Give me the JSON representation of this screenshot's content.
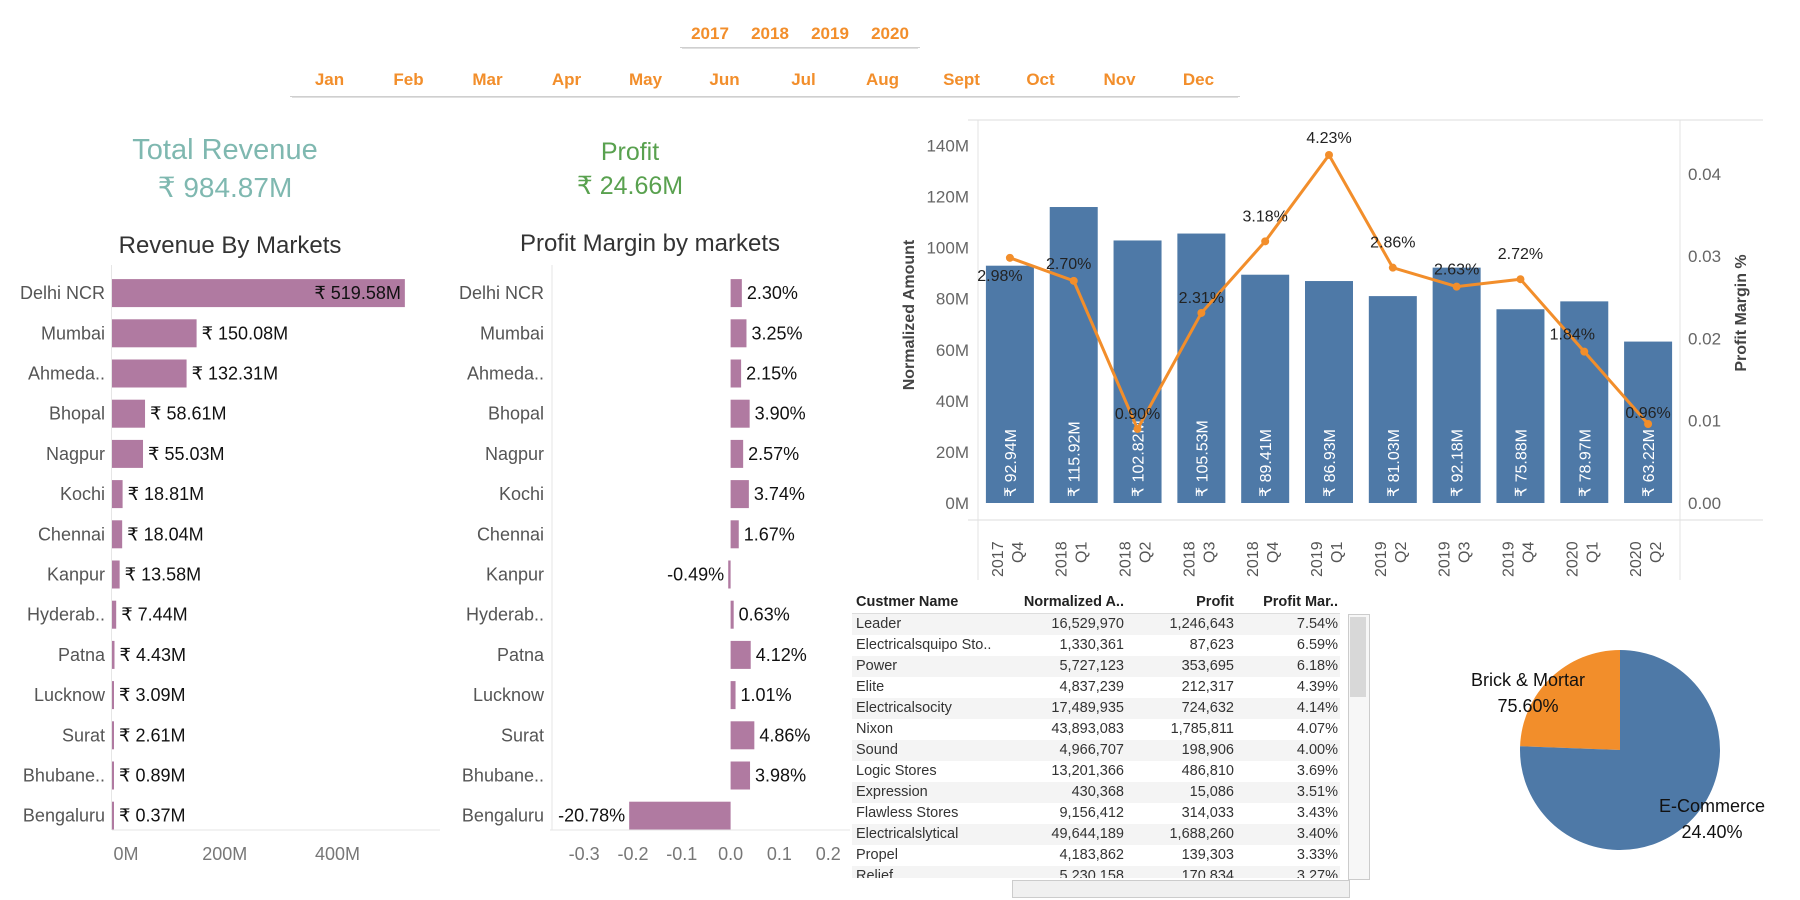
{
  "filters": {
    "years": [
      "2017",
      "2018",
      "2019",
      "2020"
    ],
    "months": [
      "Jan",
      "Feb",
      "Mar",
      "Apr",
      "May",
      "Jun",
      "Jul",
      "Aug",
      "Sept",
      "Oct",
      "Nov",
      "Dec"
    ]
  },
  "kpis": {
    "revenue": {
      "label": "Total Revenue",
      "value": "₹ 984.87M"
    },
    "profit": {
      "label": "Profit",
      "value": "₹ 24.66M"
    }
  },
  "colors": {
    "bar_purple": "#b07aa1",
    "bar_blue": "#4e79a7",
    "line_orange": "#f28e2b",
    "revenue_teal": "#7fb8b0",
    "profit_green": "#59a14f"
  },
  "chart_data": [
    {
      "type": "bar",
      "title": "Revenue By Markets",
      "orientation": "horizontal",
      "categories": [
        "Delhi NCR",
        "Mumbai",
        "Ahmeda..",
        "Bhopal",
        "Nagpur",
        "Kochi",
        "Chennai",
        "Kanpur",
        "Hyderab..",
        "Patna",
        "Lucknow",
        "Surat",
        "Bhubane..",
        "Bengaluru"
      ],
      "values": [
        519.58,
        150.08,
        132.31,
        58.61,
        55.03,
        18.81,
        18.04,
        13.58,
        7.44,
        4.43,
        3.09,
        2.61,
        0.89,
        0.37
      ],
      "data_labels": [
        "₹ 519.58M",
        "₹ 150.08M",
        "₹ 132.31M",
        "₹ 58.61M",
        "₹ 55.03M",
        "₹ 18.81M",
        "₹ 18.04M",
        "₹ 13.58M",
        "₹ 7.44M",
        "₹ 4.43M",
        "₹ 3.09M",
        "₹ 2.61M",
        "₹ 0.89M",
        "₹ 0.37M"
      ],
      "xticks": [
        "0M",
        "200M",
        "400M"
      ],
      "xtick_values": [
        0,
        200,
        400
      ],
      "xlim": [
        0,
        550
      ]
    },
    {
      "type": "bar",
      "title": "Profit Margin by markets",
      "orientation": "horizontal",
      "categories": [
        "Delhi NCR",
        "Mumbai",
        "Ahmeda..",
        "Bhopal",
        "Nagpur",
        "Kochi",
        "Chennai",
        "Kanpur",
        "Hyderab..",
        "Patna",
        "Lucknow",
        "Surat",
        "Bhubane..",
        "Bengaluru"
      ],
      "values": [
        2.3,
        3.25,
        2.15,
        3.9,
        2.57,
        3.74,
        1.67,
        -0.49,
        0.63,
        4.12,
        1.01,
        4.86,
        3.98,
        -20.78
      ],
      "data_labels": [
        "2.30%",
        "3.25%",
        "2.15%",
        "3.90%",
        "2.57%",
        "3.74%",
        "1.67%",
        "-0.49%",
        "0.63%",
        "4.12%",
        "1.01%",
        "4.86%",
        "3.98%",
        "-20.78%"
      ],
      "xticks": [
        "-0.3",
        "-0.2",
        "-0.1",
        "0.0",
        "0.1",
        "0.2"
      ],
      "xtick_values": [
        -0.3,
        -0.2,
        -0.1,
        0.0,
        0.1,
        0.2
      ],
      "xlim": [
        -0.37,
        0.22
      ]
    },
    {
      "type": "bar+line",
      "x": [
        [
          "2017",
          "Q4"
        ],
        [
          "2018",
          "Q1"
        ],
        [
          "2018",
          "Q2"
        ],
        [
          "2018",
          "Q3"
        ],
        [
          "2018",
          "Q4"
        ],
        [
          "2019",
          "Q1"
        ],
        [
          "2019",
          "Q2"
        ],
        [
          "2019",
          "Q3"
        ],
        [
          "2019",
          "Q4"
        ],
        [
          "2020",
          "Q1"
        ],
        [
          "2020",
          "Q2"
        ]
      ],
      "bar_series": {
        "name": "Normalized Amount",
        "values": [
          92.94,
          115.92,
          102.82,
          105.53,
          89.41,
          86.93,
          81.03,
          92.18,
          75.88,
          78.97,
          63.22
        ],
        "data_labels": [
          "₹ 92.94M",
          "₹ 115.92M",
          "₹ 102.82M",
          "₹ 105.53M",
          "₹ 89.41M",
          "₹ 86.93M",
          "₹ 81.03M",
          "₹ 92.18M",
          "₹ 75.88M",
          "₹ 78.97M",
          "₹ 63.22M"
        ]
      },
      "line_series": {
        "name": "Profit Margin %",
        "values": [
          0.0298,
          0.027,
          0.009,
          0.0231,
          0.0318,
          0.0423,
          0.0286,
          0.0263,
          0.0272,
          0.0184,
          0.0096
        ],
        "data_labels": [
          "2.98%",
          "2.70%",
          "0.90%",
          "2.31%",
          "3.18%",
          "4.23%",
          "2.86%",
          "2.63%",
          "2.72%",
          "1.84%",
          "0.96%"
        ]
      },
      "ylabel": "Normalized Amount",
      "y2label": "Profit Margin %",
      "yticks": [
        "0M",
        "20M",
        "40M",
        "60M",
        "80M",
        "100M",
        "120M",
        "140M"
      ],
      "ytick_values": [
        0,
        20,
        40,
        60,
        80,
        100,
        120,
        140
      ],
      "y2ticks": [
        "0.00",
        "0.01",
        "0.02",
        "0.03",
        "0.04"
      ],
      "y2tick_values": [
        0,
        0.01,
        0.02,
        0.03,
        0.04
      ],
      "ylim": [
        0,
        150
      ],
      "y2lim": [
        0,
        0.04655
      ]
    },
    {
      "type": "pie",
      "slices": [
        {
          "label": "E-Commerce",
          "value": 24.4,
          "value_label": "24.40%",
          "color": "#f28e2b"
        },
        {
          "label": "Brick & Mortar",
          "value": 75.6,
          "value_label": "75.60%",
          "color": "#4e79a7"
        }
      ]
    },
    {
      "type": "table",
      "columns": [
        "Custmer Name",
        "Normalized A..",
        "Profit",
        "Profit Mar.."
      ],
      "rows": [
        [
          "Leader",
          "16,529,970",
          "1,246,643",
          "7.54%"
        ],
        [
          "Electricalsquipo Sto..",
          "1,330,361",
          "87,623",
          "6.59%"
        ],
        [
          "Power",
          "5,727,123",
          "353,695",
          "6.18%"
        ],
        [
          "Elite",
          "4,837,239",
          "212,317",
          "4.39%"
        ],
        [
          "Electricalsocity",
          "17,489,935",
          "724,632",
          "4.14%"
        ],
        [
          "Nixon",
          "43,893,083",
          "1,785,811",
          "4.07%"
        ],
        [
          "Sound",
          "4,966,707",
          "198,906",
          "4.00%"
        ],
        [
          "Logic Stores",
          "13,201,366",
          "486,810",
          "3.69%"
        ],
        [
          "Expression",
          "430,368",
          "15,086",
          "3.51%"
        ],
        [
          "Flawless Stores",
          "9,156,412",
          "314,033",
          "3.43%"
        ],
        [
          "Electricalslytical",
          "49,644,189",
          "1,688,260",
          "3.40%"
        ],
        [
          "Propel",
          "4,183,862",
          "139,303",
          "3.33%"
        ],
        [
          "Relief",
          "5,230,158",
          "170,834",
          "3.27%"
        ]
      ]
    }
  ]
}
